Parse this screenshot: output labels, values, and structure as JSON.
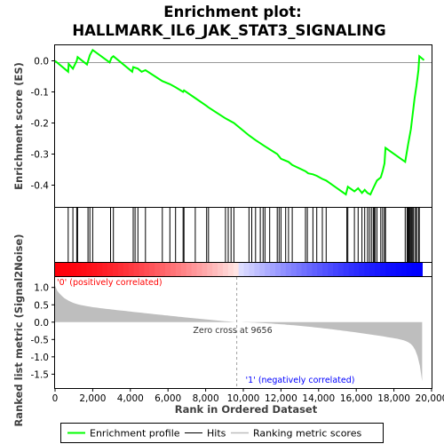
{
  "title_line1": "Enrichment plot:",
  "title_line2": "HALLMARK_IL6_JAK_STAT3_SIGNALING",
  "top_ylabel": "Enrichment score (ES)",
  "bottom_ylabel": "Ranked list metric (Signal2Noise)",
  "xlabel": "Rank in Ordered Dataset",
  "pos_label": "'0' (positively correlated)",
  "neg_label": "'1' (negatively correlated)",
  "zero_cross_label": "Zero cross at 9656",
  "legend": {
    "enrichment": "Enrichment profile",
    "hits": "Hits",
    "ranking": "Ranking metric scores"
  },
  "colors": {
    "enrichment": "#00ff00",
    "hits": "#000000",
    "ranking": "#bebebe",
    "pos_text": "#ff0000",
    "neg_text": "#0000ff"
  },
  "chart_data": {
    "type": "line",
    "xlim": [
      0,
      20000
    ],
    "ylim_es": [
      -0.47,
      0.05
    ],
    "ylim_metric": [
      -1.9,
      1.3
    ],
    "x_ticks": [
      "0",
      "2,000",
      "4,000",
      "6,000",
      "8,000",
      "10,000",
      "12,000",
      "14,000",
      "16,000",
      "18,000",
      "20,000"
    ],
    "es_ticks": [
      "0.0",
      "-0.1",
      "-0.2",
      "-0.3",
      "-0.4"
    ],
    "metric_ticks": [
      "1.0",
      "0.5",
      "0.0",
      "-0.5",
      "-1.0",
      "-1.5"
    ],
    "total_genes": 19500,
    "zero_cross": 9656,
    "hits": [
      700,
      950,
      1150,
      1200,
      1750,
      1850,
      2000,
      2950,
      3100,
      4150,
      4250,
      4400,
      4800,
      5700,
      6100,
      6400,
      6800,
      6850,
      7450,
      8050,
      8150,
      9050,
      9200,
      9350,
      9500,
      10300,
      10450,
      10650,
      10900,
      11050,
      11150,
      11400,
      11800,
      11900,
      12000,
      12250,
      12400,
      12600,
      13300,
      13400,
      13700,
      13900,
      14200,
      14400,
      15500,
      15550,
      15900,
      16100,
      16300,
      16450,
      16600,
      16700,
      16800,
      16900,
      16950,
      17000,
      17100,
      17300,
      17400,
      17500,
      17550,
      18600,
      18700,
      18750,
      18800,
      18850,
      18900,
      18950,
      19000,
      19050,
      19150,
      19200,
      19300,
      19350
    ],
    "es_profile": [
      [
        0,
        0.0
      ],
      [
        700,
        -0.035
      ],
      [
        720,
        -0.01
      ],
      [
        950,
        -0.025
      ],
      [
        1150,
        0.0
      ],
      [
        1200,
        0.012
      ],
      [
        1700,
        -0.012
      ],
      [
        1850,
        0.018
      ],
      [
        2000,
        0.035
      ],
      [
        2900,
        -0.005
      ],
      [
        3000,
        0.01
      ],
      [
        3100,
        0.015
      ],
      [
        4100,
        -0.035
      ],
      [
        4150,
        -0.02
      ],
      [
        4400,
        -0.025
      ],
      [
        4600,
        -0.035
      ],
      [
        4800,
        -0.03
      ],
      [
        5700,
        -0.065
      ],
      [
        6100,
        -0.075
      ],
      [
        6400,
        -0.085
      ],
      [
        6800,
        -0.1
      ],
      [
        6850,
        -0.095
      ],
      [
        7450,
        -0.12
      ],
      [
        8050,
        -0.145
      ],
      [
        8150,
        -0.15
      ],
      [
        9050,
        -0.185
      ],
      [
        9500,
        -0.2
      ],
      [
        10300,
        -0.24
      ],
      [
        10650,
        -0.255
      ],
      [
        11150,
        -0.275
      ],
      [
        11800,
        -0.3
      ],
      [
        12000,
        -0.315
      ],
      [
        12400,
        -0.325
      ],
      [
        12600,
        -0.335
      ],
      [
        13300,
        -0.355
      ],
      [
        13450,
        -0.362
      ],
      [
        13700,
        -0.365
      ],
      [
        13900,
        -0.37
      ],
      [
        14200,
        -0.38
      ],
      [
        14400,
        -0.385
      ],
      [
        15450,
        -0.43
      ],
      [
        15550,
        -0.405
      ],
      [
        15900,
        -0.42
      ],
      [
        16100,
        -0.41
      ],
      [
        16300,
        -0.425
      ],
      [
        16450,
        -0.415
      ],
      [
        16600,
        -0.425
      ],
      [
        16750,
        -0.43
      ],
      [
        16900,
        -0.41
      ],
      [
        17100,
        -0.385
      ],
      [
        17300,
        -0.375
      ],
      [
        17400,
        -0.355
      ],
      [
        17500,
        -0.33
      ],
      [
        17550,
        -0.28
      ],
      [
        18600,
        -0.325
      ],
      [
        18750,
        -0.27
      ],
      [
        18900,
        -0.22
      ],
      [
        19000,
        -0.17
      ],
      [
        19100,
        -0.12
      ],
      [
        19200,
        -0.08
      ],
      [
        19300,
        -0.03
      ],
      [
        19350,
        0.015
      ],
      [
        19600,
        0.002
      ]
    ]
  }
}
